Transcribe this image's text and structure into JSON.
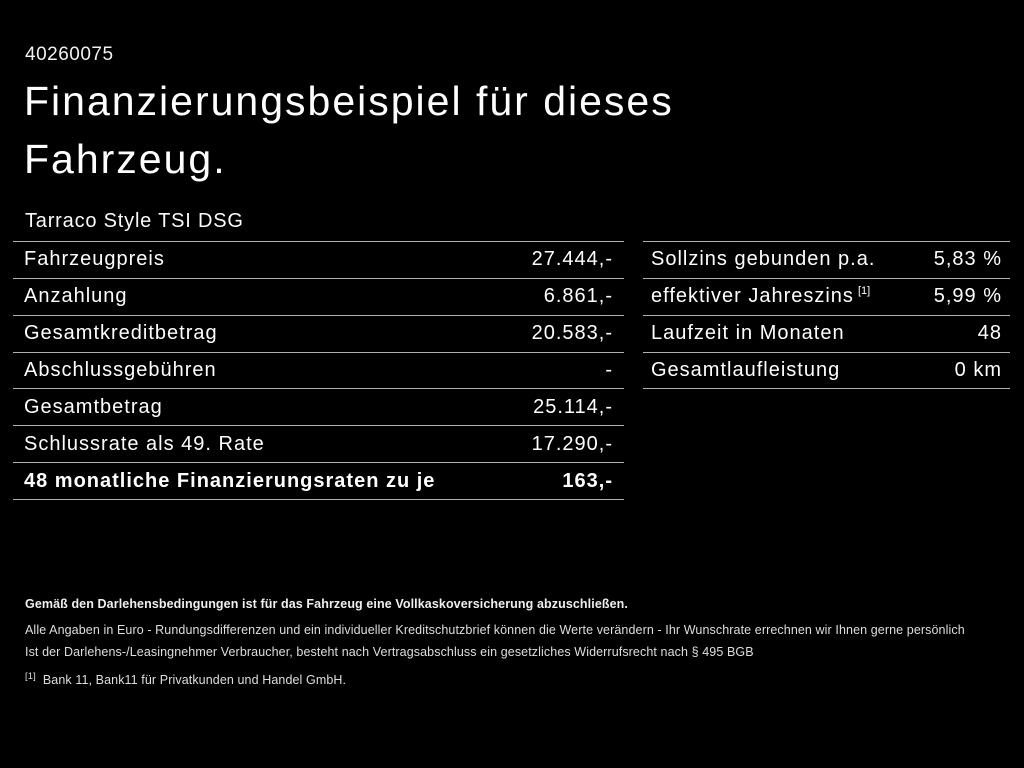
{
  "page": {
    "doc_number": "40260075",
    "title": "Finanzierungsbeispiel für dieses Fahrzeug.",
    "model": "Tarraco Style TSI DSG"
  },
  "finance_table": {
    "rows": [
      {
        "label": "Fahrzeugpreis",
        "value": "27.444,-"
      },
      {
        "label": "Anzahlung",
        "value": "6.861,-"
      },
      {
        "label": "Gesamtkreditbetrag",
        "value": "20.583,-"
      },
      {
        "label": "Abschlussgebühren",
        "value": "-"
      },
      {
        "label": "Gesamtbetrag",
        "value": "25.114,-"
      },
      {
        "label": "Schlussrate als 49. Rate",
        "value": "17.290,-"
      },
      {
        "label": "48 monatliche Finanzierungsraten zu je",
        "value": "163,-"
      }
    ]
  },
  "conditions_table": {
    "rows": [
      {
        "label": "Sollzins gebunden p.a.",
        "value": "5,83 %"
      },
      {
        "label": "effektiver Jahreszins",
        "sup": "[1]",
        "value": "5,99 %"
      },
      {
        "label": "Laufzeit in Monaten",
        "value": "48"
      },
      {
        "label": "Gesamtlaufleistung",
        "value": "0 km"
      }
    ]
  },
  "footer": {
    "insurance_note": "Gemäß den Darlehensbedingungen ist für das Fahrzeug eine Vollkaskoversicherung abzuschließen.",
    "values_note": "Alle Angaben in Euro - Rundungsdifferenzen und ein individueller Kreditschutzbrief können die Werte verändern - Ihr Wunschrate errechnen wir Ihnen gerne persönlich",
    "withdrawal_note": "Ist der Darlehens-/Leasingnehmer Verbraucher, besteht nach Vertragsabschluss ein gesetzliches Widerrufsrecht nach § 495 BGB",
    "footnote_marker": "[1]",
    "footnote_text": "Bank 11, Bank11 für Privatkunden und Handel GmbH."
  },
  "colors": {
    "background": "#000000",
    "text": "#ffffff",
    "divider": "#b0b0b0"
  }
}
